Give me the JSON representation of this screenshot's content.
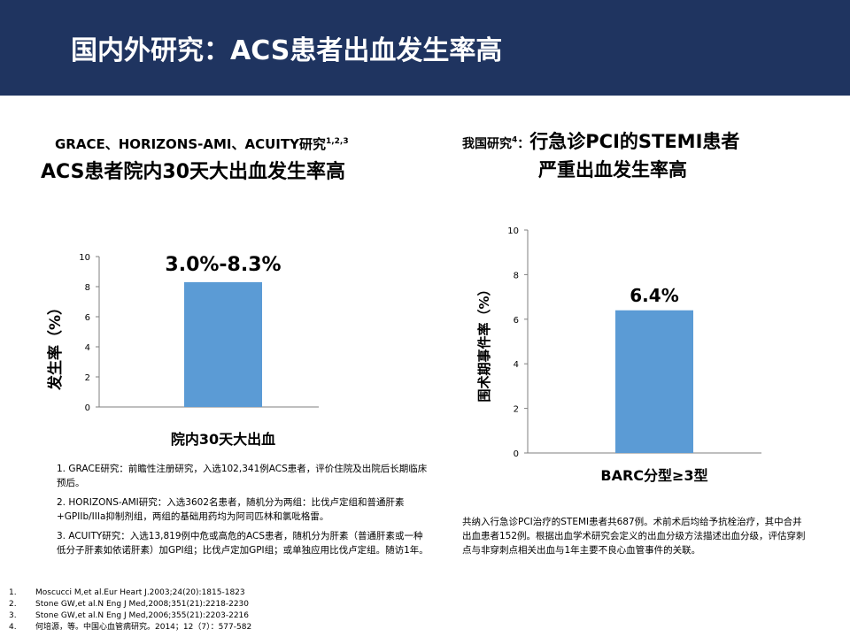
{
  "header": {
    "title": "国内外研究：ACS患者出血发生率高"
  },
  "left_panel": {
    "title_line1": "GRACE、HORIZONS-AMI、ACUITY研究",
    "title_line1_sup": "1,2,3",
    "title_line2": "ACS患者院内30天大出血发生率高",
    "value_label": "3.0%-8.3%",
    "notes": [
      "1. GRACE研究：前瞻性注册研究，入选102,341例ACS患者，评价住院及出院后长期临床预后。",
      "2. HORIZONS-AMI研究：入选3602名患者，随机分为两组：比伐卢定组和普通肝素+GPIIb/IIIa抑制剂组，两组的基础用药均为阿司匹林和氯吡格雷。",
      "3. ACUITY研究：入选13,819例中危或高危的ACS患者，随机分为肝素（普通肝素或一种低分子肝素如依诺肝素）加GPI组；比伐卢定加GPI组；或单独应用比伐卢定组。随访1年。"
    ]
  },
  "right_panel": {
    "title_prefix": "我国研究",
    "title_prefix_sup": "4",
    "title_colon": "：",
    "title_main": "行急诊PCI的STEMI患者",
    "title_line2": "严重出血发生率高",
    "note": "共纳入行急诊PCI治疗的STEMI患者共687例。术前术后均给予抗栓治疗，其中合并出血患者152例。根据出血学术研究会定义的出血分级方法描述出血分级，评估穿刺点与非穿刺点相关出血与1年主要不良心血管事件的关联。"
  },
  "references": [
    {
      "num": "1.",
      "text": "Moscucci M,et al.Eur Heart J.2003;24(20):1815-1823"
    },
    {
      "num": "2.",
      "text": "Stone GW,et al.N Eng J Med,2008;351(21):2218-2230"
    },
    {
      "num": "3.",
      "text": "Stone GW,et al.N Eng J Med,2006;355(21):2203-2216"
    },
    {
      "num": "4.",
      "text": "何培源，等。中国心血管病研究。2014；12（7）：577-582"
    }
  ],
  "chart_data": [
    {
      "type": "bar",
      "ylabel": "发生率（%）",
      "categories": [
        "院内30天大出血"
      ],
      "values": [
        8.3
      ],
      "ylim": [
        0,
        10
      ],
      "yticks": [
        0,
        2,
        4,
        6,
        8,
        10
      ],
      "bar_color": "#5b9bd5",
      "grid": false
    },
    {
      "type": "bar",
      "ylabel": "围术期事件率（%）",
      "categories": [
        "BARC分型≥3型"
      ],
      "values": [
        6.4
      ],
      "ylim": [
        0,
        10
      ],
      "yticks": [
        0,
        2,
        4,
        6,
        8,
        10
      ],
      "value_labels": [
        "6.4%"
      ],
      "bar_color": "#5b9bd5",
      "grid": false
    }
  ]
}
